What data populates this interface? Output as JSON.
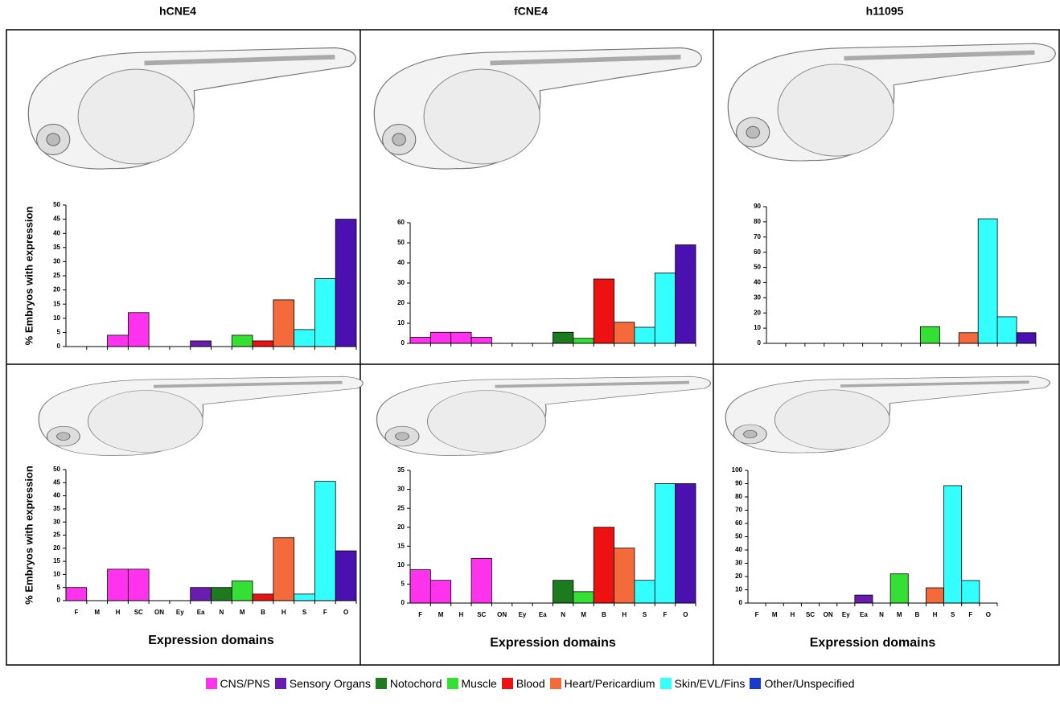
{
  "chart_data": [
    {
      "type": "bar",
      "title": "hCNE4",
      "ylabel": "% Embryos with expression",
      "categories": [
        null,
        null,
        null,
        null,
        null,
        null,
        null,
        null,
        null,
        null,
        null,
        null,
        null,
        null
      ],
      "values": [
        0,
        0,
        4,
        12,
        0,
        0,
        2,
        0,
        4,
        2,
        16.5,
        6,
        24,
        45
      ],
      "colors": [
        "#ff33ee",
        "#ff33ee",
        "#ff33ee",
        "#ff33ee",
        "#6a1bb0",
        "#6a1bb0",
        "#6a1bb0",
        "#1e7a1e",
        "#33e033",
        "#ee1111",
        "#f46a3a",
        "#33ffff",
        "#33ffff",
        "#4a10b0"
      ],
      "ylim": [
        0,
        50
      ],
      "yticks": [
        0,
        5,
        10,
        15,
        20,
        25,
        30,
        35,
        40,
        45,
        50
      ]
    },
    {
      "type": "bar",
      "title": "fCNE4",
      "categories": [
        null,
        null,
        null,
        null,
        null,
        null,
        null,
        null,
        null,
        null,
        null,
        null,
        null,
        null
      ],
      "values": [
        3,
        5.5,
        5.5,
        3,
        0,
        0,
        0,
        5.5,
        2.5,
        32,
        10.5,
        8,
        35,
        49
      ],
      "colors": [
        "#ff33ee",
        "#ff33ee",
        "#ff33ee",
        "#ff33ee",
        "#6a1bb0",
        "#6a1bb0",
        "#6a1bb0",
        "#1e7a1e",
        "#33e033",
        "#ee1111",
        "#f46a3a",
        "#33ffff",
        "#33ffff",
        "#4a10b0"
      ],
      "ylim": [
        0,
        60
      ],
      "yticks": [
        0,
        10,
        20,
        30,
        40,
        50,
        60
      ]
    },
    {
      "type": "bar",
      "title": "h11095",
      "categories": [
        null,
        null,
        null,
        null,
        null,
        null,
        null,
        null,
        null,
        null,
        null,
        null,
        null,
        null
      ],
      "values": [
        0,
        0,
        0,
        0,
        0,
        0,
        0,
        0,
        11,
        0,
        7,
        82,
        17.5,
        7
      ],
      "colors": [
        "#ff33ee",
        "#ff33ee",
        "#ff33ee",
        "#ff33ee",
        "#6a1bb0",
        "#6a1bb0",
        "#6a1bb0",
        "#1e7a1e",
        "#33e033",
        "#ee1111",
        "#f46a3a",
        "#33ffff",
        "#33ffff",
        "#4a10b0"
      ],
      "ylim": [
        0,
        90
      ],
      "yticks": [
        0,
        10,
        20,
        30,
        40,
        50,
        60,
        70,
        80,
        90
      ]
    },
    {
      "type": "bar",
      "ylabel": "% Embryos with expression",
      "xlabel": "Expression domains",
      "categories": [
        "F",
        "M",
        "H",
        "SC",
        "ON",
        "Ey",
        "Ea",
        "N",
        "M",
        "B",
        "H",
        "S",
        "F",
        "O"
      ],
      "values": [
        5,
        0,
        12,
        12,
        0,
        0,
        5,
        5,
        7.5,
        2.5,
        24,
        2.5,
        45.5,
        19
      ],
      "colors": [
        "#ff33ee",
        "#ff33ee",
        "#ff33ee",
        "#ff33ee",
        "#6a1bb0",
        "#6a1bb0",
        "#6a1bb0",
        "#1e7a1e",
        "#33e033",
        "#ee1111",
        "#f46a3a",
        "#33ffff",
        "#33ffff",
        "#4a10b0"
      ],
      "ylim": [
        0,
        50
      ],
      "yticks": [
        0,
        5,
        10,
        15,
        20,
        25,
        30,
        35,
        40,
        45,
        50
      ]
    },
    {
      "type": "bar",
      "xlabel": "Expression domains",
      "categories": [
        "F",
        "M",
        "H",
        "SC",
        "ON",
        "Ey",
        "Ea",
        "N",
        "M",
        "B",
        "H",
        "S",
        "F",
        "O"
      ],
      "values": [
        8.8,
        6,
        0,
        11.8,
        0,
        0,
        0,
        6,
        3,
        20,
        14.5,
        6,
        31.5,
        31.5
      ],
      "colors": [
        "#ff33ee",
        "#ff33ee",
        "#ff33ee",
        "#ff33ee",
        "#6a1bb0",
        "#6a1bb0",
        "#6a1bb0",
        "#1e7a1e",
        "#33e033",
        "#ee1111",
        "#f46a3a",
        "#33ffff",
        "#33ffff",
        "#4a10b0"
      ],
      "ylim": [
        0,
        35
      ],
      "yticks": [
        0,
        5,
        10,
        15,
        20,
        25,
        30,
        35
      ]
    },
    {
      "type": "bar",
      "xlabel": "Expression domains",
      "categories": [
        "F",
        "M",
        "H",
        "SC",
        "ON",
        "Ey",
        "Ea",
        "N",
        "M",
        "B",
        "H",
        "S",
        "F",
        "O"
      ],
      "values": [
        0,
        0,
        0,
        0,
        0,
        0,
        6,
        0,
        22,
        0,
        11.5,
        88.5,
        17,
        0
      ],
      "colors": [
        "#ff33ee",
        "#ff33ee",
        "#ff33ee",
        "#ff33ee",
        "#6a1bb0",
        "#6a1bb0",
        "#6a1bb0",
        "#1e7a1e",
        "#33e033",
        "#ee1111",
        "#f46a3a",
        "#33ffff",
        "#33ffff",
        "#4a10b0"
      ],
      "ylim": [
        0,
        100
      ],
      "yticks": [
        0,
        10,
        20,
        30,
        40,
        50,
        60,
        70,
        80,
        90,
        100
      ]
    }
  ],
  "legend": [
    {
      "label": "CNS/PNS",
      "color": "#ff33ee"
    },
    {
      "label": "Sensory Organs",
      "color": "#6a1bb0"
    },
    {
      "label": "Notochord",
      "color": "#1e7a1e"
    },
    {
      "label": "Muscle",
      "color": "#33e033"
    },
    {
      "label": "Blood",
      "color": "#ee1111"
    },
    {
      "label": "Heart/Pericardium",
      "color": "#f46a3a"
    },
    {
      "label": "Skin/EVL/Fins",
      "color": "#33ffff"
    },
    {
      "label": "Other/Unspecified",
      "color": "#1a3acc"
    }
  ]
}
